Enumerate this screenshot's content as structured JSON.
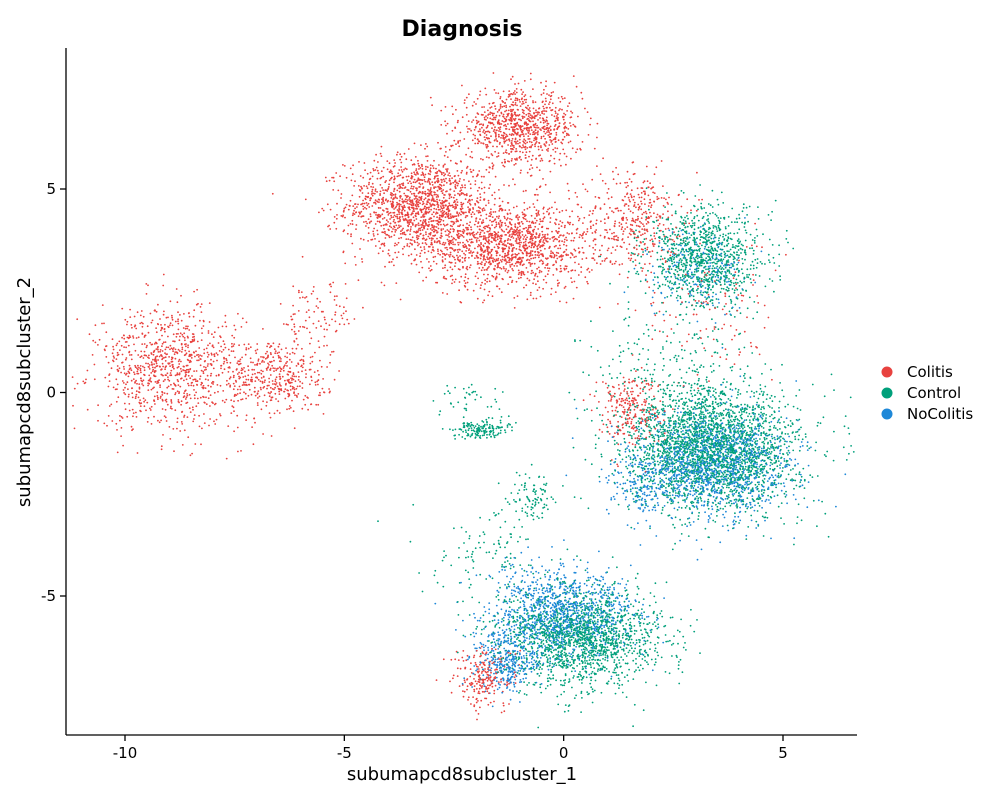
{
  "chart_data": {
    "type": "scatter",
    "title": "Diagnosis",
    "xlabel": "subumapcd8subcluster_1",
    "ylabel": "subumapcd8subcluster_2",
    "xlim": [
      -11.3,
      6.7
    ],
    "ylim": [
      -8.4,
      8.6
    ],
    "x_ticks": [
      -10,
      -5,
      0,
      5
    ],
    "x_tick_labels": [
      "-10",
      "-5",
      "0",
      "5"
    ],
    "y_ticks": [
      -5,
      0,
      5
    ],
    "y_tick_labels": [
      "-5",
      "0",
      "5"
    ],
    "grid": false,
    "legend_position": "right",
    "series": [
      {
        "name": "Colitis",
        "color": "#E8423F",
        "clusters": [
          {
            "cx": -3.3,
            "cy": 4.6,
            "sx": 1.1,
            "sy": 0.8,
            "n": 1400
          },
          {
            "cx": -1.2,
            "cy": 3.6,
            "sx": 1.3,
            "sy": 0.7,
            "n": 1300
          },
          {
            "cx": -1.0,
            "cy": 6.5,
            "sx": 0.9,
            "sy": 0.6,
            "n": 900
          },
          {
            "cx": -9.0,
            "cy": 0.6,
            "sx": 1.1,
            "sy": 1.0,
            "n": 900
          },
          {
            "cx": -6.6,
            "cy": 0.4,
            "sx": 0.8,
            "sy": 0.7,
            "n": 450
          },
          {
            "cx": 1.6,
            "cy": 4.3,
            "sx": 0.7,
            "sy": 0.8,
            "n": 350
          },
          {
            "cx": 1.5,
            "cy": -0.4,
            "sx": 0.5,
            "sy": 0.6,
            "n": 250
          },
          {
            "cx": -1.8,
            "cy": -7.0,
            "sx": 0.5,
            "sy": 0.5,
            "n": 220
          },
          {
            "cx": 3.3,
            "cy": 2.0,
            "sx": 1.0,
            "sy": 1.2,
            "n": 120
          },
          {
            "cx": -5.5,
            "cy": 2.0,
            "sx": 0.6,
            "sy": 0.6,
            "n": 80
          }
        ]
      },
      {
        "name": "Control",
        "color": "#00A07B",
        "clusters": [
          {
            "cx": 3.4,
            "cy": -1.4,
            "sx": 1.3,
            "sy": 1.0,
            "n": 2600
          },
          {
            "cx": 0.4,
            "cy": -6.0,
            "sx": 1.2,
            "sy": 0.8,
            "n": 1700
          },
          {
            "cx": 3.2,
            "cy": 3.3,
            "sx": 0.9,
            "sy": 0.8,
            "n": 1000
          },
          {
            "cx": -1.9,
            "cy": -0.9,
            "sx": 0.4,
            "sy": 0.15,
            "n": 160
          },
          {
            "cx": -0.7,
            "cy": -2.6,
            "sx": 0.4,
            "sy": 0.4,
            "n": 90
          },
          {
            "cx": 2.5,
            "cy": 0.5,
            "sx": 1.2,
            "sy": 1.0,
            "n": 200
          },
          {
            "cx": -1.5,
            "cy": -4.0,
            "sx": 1.0,
            "sy": 0.8,
            "n": 120
          },
          {
            "cx": -2.2,
            "cy": -0.2,
            "sx": 0.6,
            "sy": 0.3,
            "n": 40
          }
        ]
      },
      {
        "name": "NoColitis",
        "color": "#1E88D8",
        "clusters": [
          {
            "cx": 3.4,
            "cy": -1.8,
            "sx": 1.2,
            "sy": 0.9,
            "n": 1200
          },
          {
            "cx": 0.0,
            "cy": -5.4,
            "sx": 1.1,
            "sy": 0.7,
            "n": 1000
          },
          {
            "cx": -1.3,
            "cy": -6.6,
            "sx": 0.5,
            "sy": 0.5,
            "n": 350
          },
          {
            "cx": 3.0,
            "cy": 3.0,
            "sx": 0.8,
            "sy": 0.7,
            "n": 200
          },
          {
            "cx": 1.8,
            "cy": -2.3,
            "sx": 0.5,
            "sy": 0.5,
            "n": 150
          }
        ]
      }
    ]
  }
}
